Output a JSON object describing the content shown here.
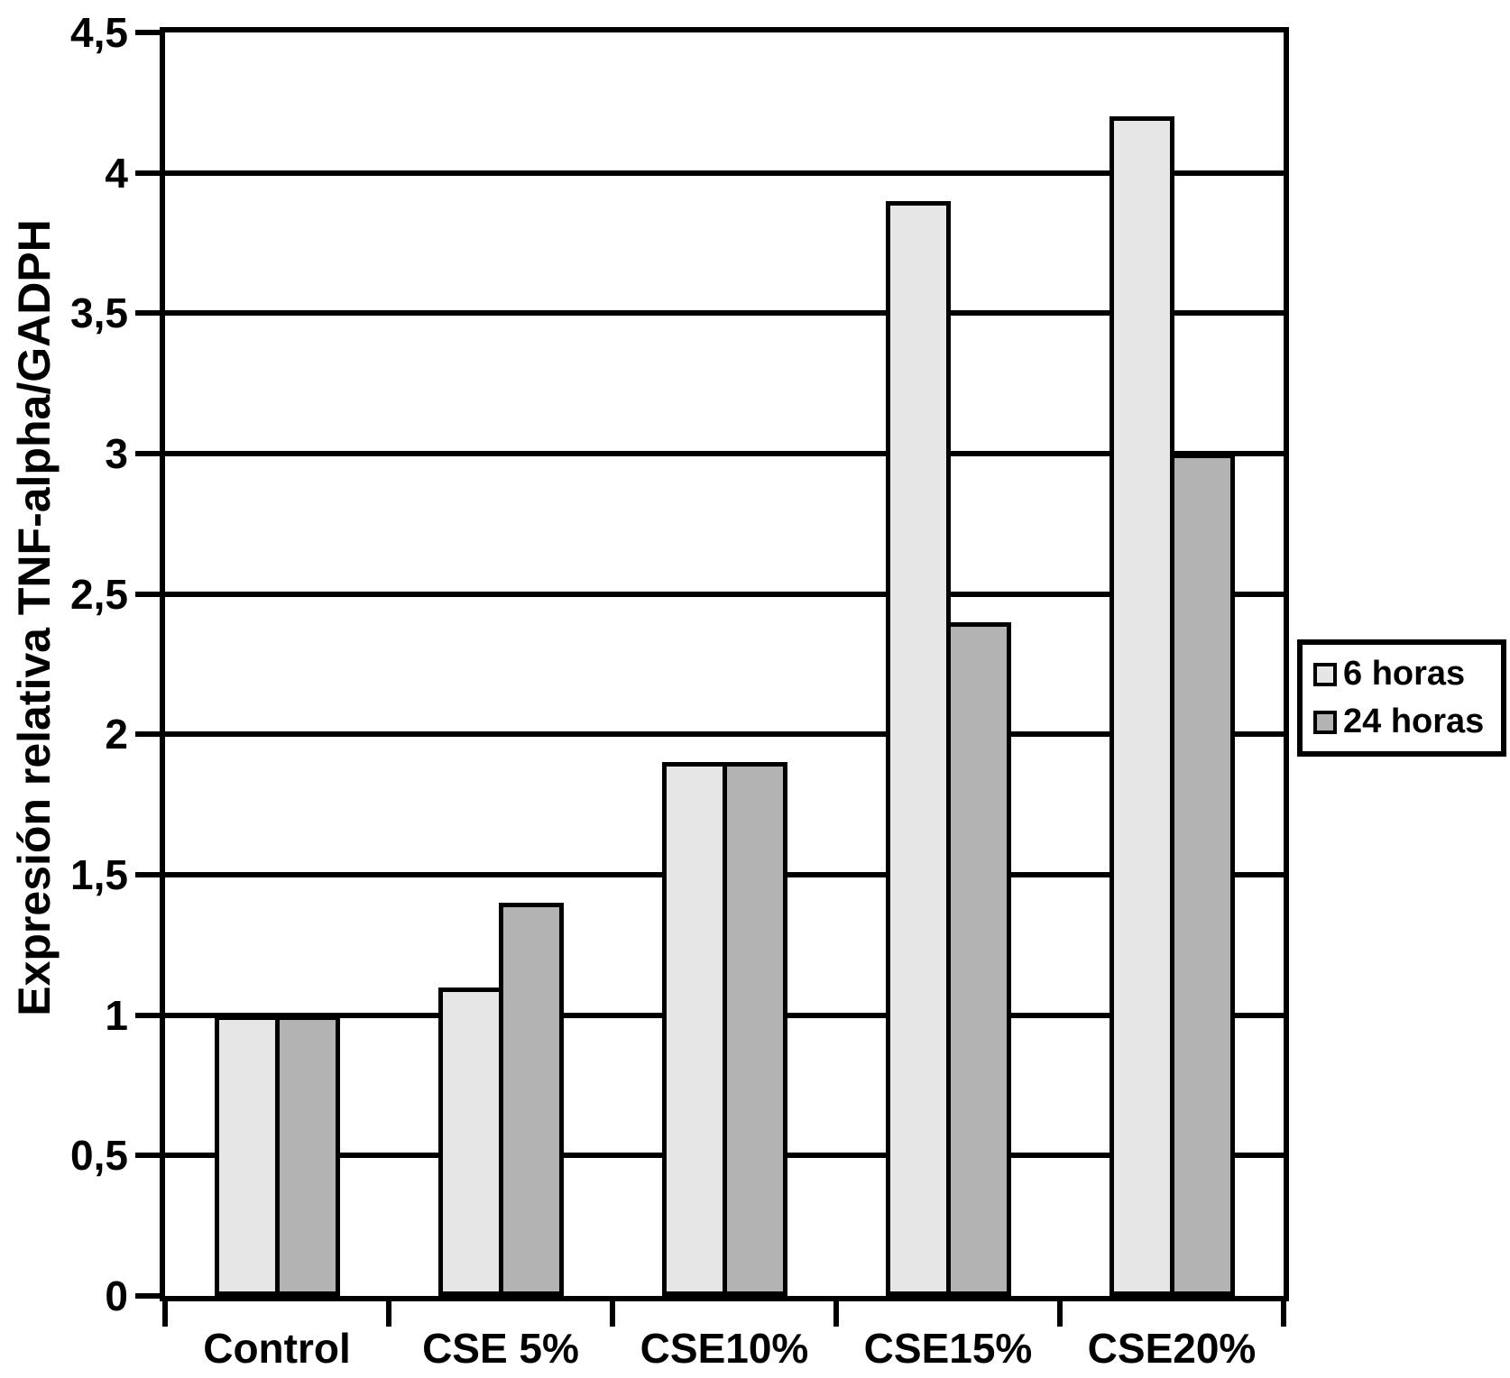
{
  "chart_data": {
    "type": "bar",
    "title": "",
    "categories": [
      "Control",
      "CSE 5%",
      "CSE10%",
      "CSE15%",
      "CSE20%"
    ],
    "series": [
      {
        "name": "6 horas",
        "color": "#e6e6e6",
        "values": [
          1.0,
          1.1,
          1.9,
          3.9,
          4.2
        ]
      },
      {
        "name": "24 horas",
        "color": "#b3b3b3",
        "values": [
          1.0,
          1.4,
          1.9,
          2.4,
          3.0
        ]
      }
    ],
    "xlabel": "",
    "ylabel": "Expresión relativa TNF-alpha/GADPH",
    "ylim": [
      0,
      4.5
    ],
    "ytick_step": 0.5,
    "ytick_labels": [
      "0",
      "0,5",
      "1",
      "1,5",
      "2",
      "2,5",
      "3",
      "3,5",
      "4",
      "4,5"
    ],
    "grid": "horizontal",
    "legend_position": "right",
    "bar_border_color": "#000000",
    "axis_color": "#000000",
    "background_color": "#ffffff"
  }
}
